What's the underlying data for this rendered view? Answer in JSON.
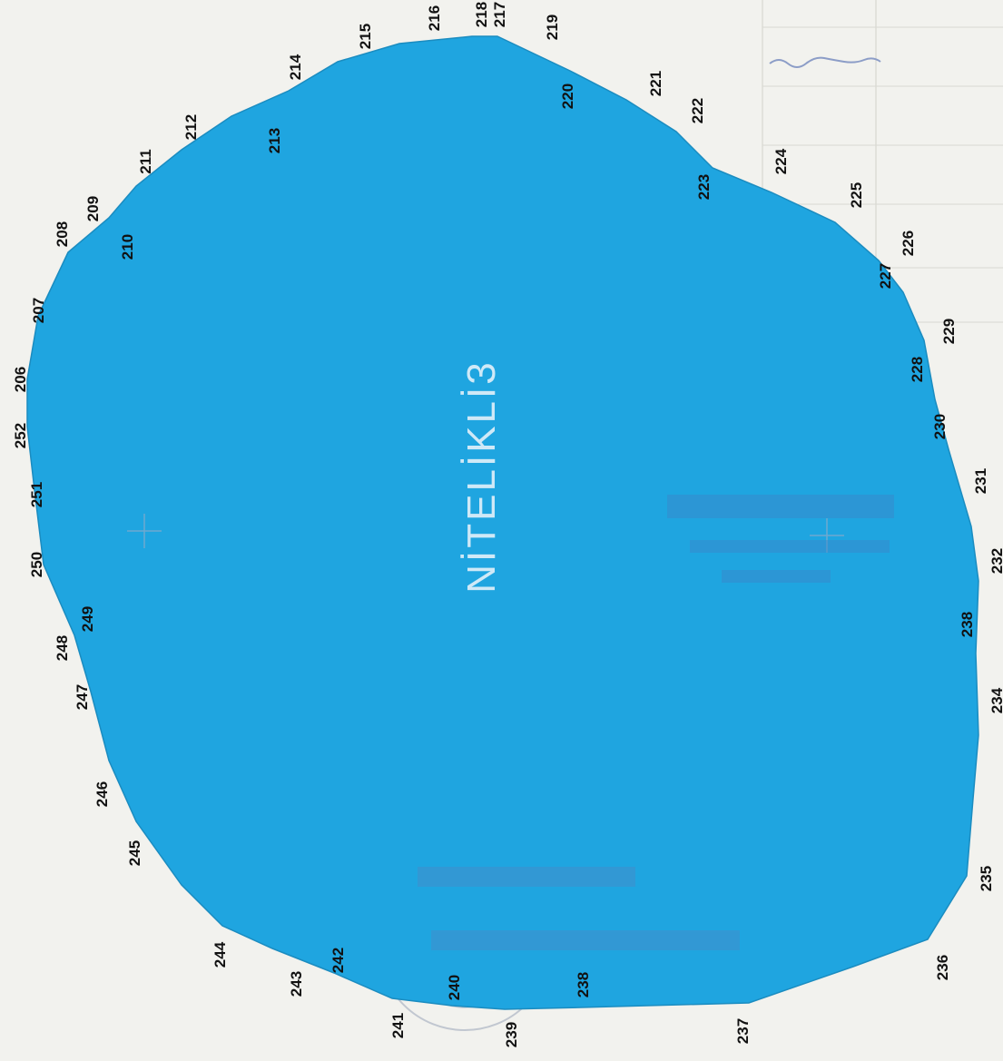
{
  "colors": {
    "paper": "#f2f2ee",
    "parcel_fill": "#1fa5e0",
    "parcel_label": "#cfe9f7",
    "vertex_label": "#111111"
  },
  "parcel": {
    "label": "NİTELİKLİ3"
  },
  "vertices": [
    {
      "id": "206"
    },
    {
      "id": "207"
    },
    {
      "id": "208"
    },
    {
      "id": "209"
    },
    {
      "id": "210"
    },
    {
      "id": "211"
    },
    {
      "id": "212"
    },
    {
      "id": "213"
    },
    {
      "id": "214"
    },
    {
      "id": "215"
    },
    {
      "id": "216"
    },
    {
      "id": "217"
    },
    {
      "id": "218"
    },
    {
      "id": "219"
    },
    {
      "id": "220"
    },
    {
      "id": "221"
    },
    {
      "id": "222"
    },
    {
      "id": "223"
    },
    {
      "id": "224"
    },
    {
      "id": "225"
    },
    {
      "id": "226"
    },
    {
      "id": "227"
    },
    {
      "id": "228"
    },
    {
      "id": "229"
    },
    {
      "id": "230"
    },
    {
      "id": "231"
    },
    {
      "id": "232"
    },
    {
      "id": "238"
    },
    {
      "id": "234"
    },
    {
      "id": "235"
    },
    {
      "id": "236"
    },
    {
      "id": "237"
    },
    {
      "id": "238"
    },
    {
      "id": "239"
    },
    {
      "id": "240"
    },
    {
      "id": "241"
    },
    {
      "id": "242"
    },
    {
      "id": "243"
    },
    {
      "id": "244"
    },
    {
      "id": "245"
    },
    {
      "id": "246"
    },
    {
      "id": "247"
    },
    {
      "id": "248"
    },
    {
      "id": "249"
    },
    {
      "id": "250"
    },
    {
      "id": "251"
    },
    {
      "id": "252"
    }
  ]
}
